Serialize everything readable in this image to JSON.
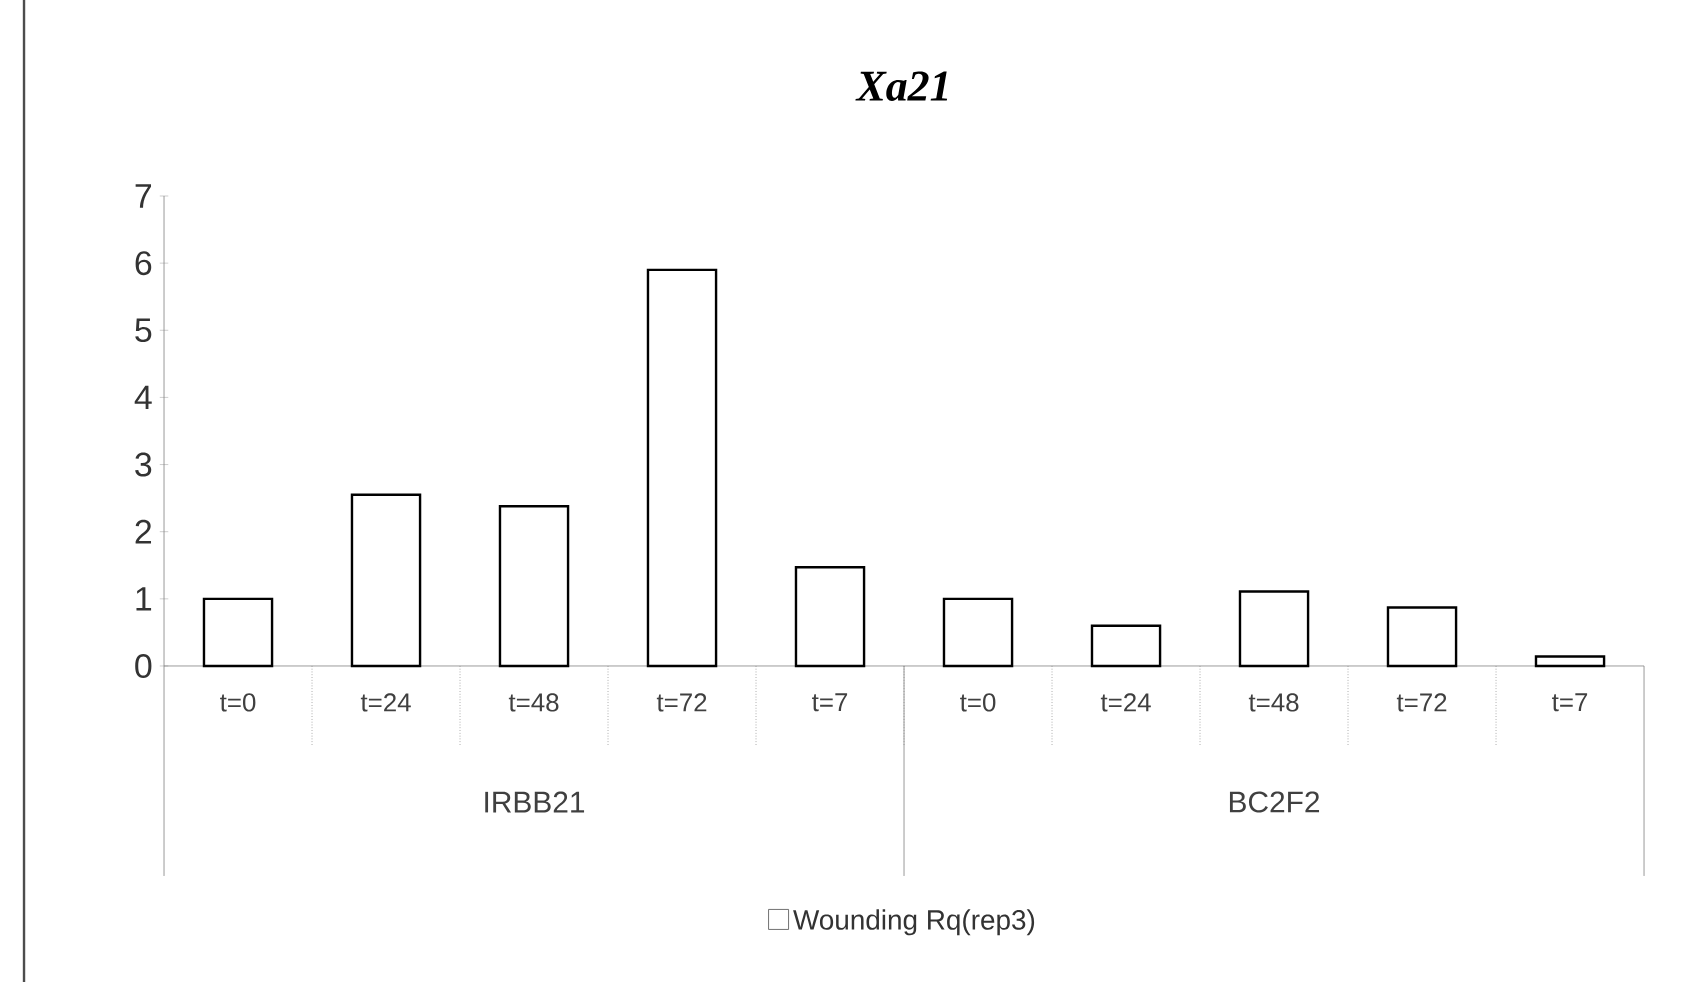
{
  "chart_data": {
    "type": "bar",
    "title": "Xa21",
    "categories": [
      "t=0",
      "t=24",
      "t=48",
      "t=72",
      "t=7",
      "t=0",
      "t=24",
      "t=48",
      "t=72",
      "t=7"
    ],
    "series": [
      {
        "name": "Wounding Rq(rep3)",
        "color": "#ffffff",
        "values": [
          1.0,
          2.55,
          2.38,
          5.9,
          1.47,
          1.0,
          0.6,
          1.11,
          0.87,
          0.14
        ]
      }
    ],
    "annotations": [
      "IRBB21",
      "BC2F2"
    ],
    "ylim": [
      0,
      7
    ],
    "yticks": [
      0,
      1,
      2,
      3,
      4,
      5,
      6,
      7
    ],
    "grid": false,
    "legend": "bottom"
  }
}
